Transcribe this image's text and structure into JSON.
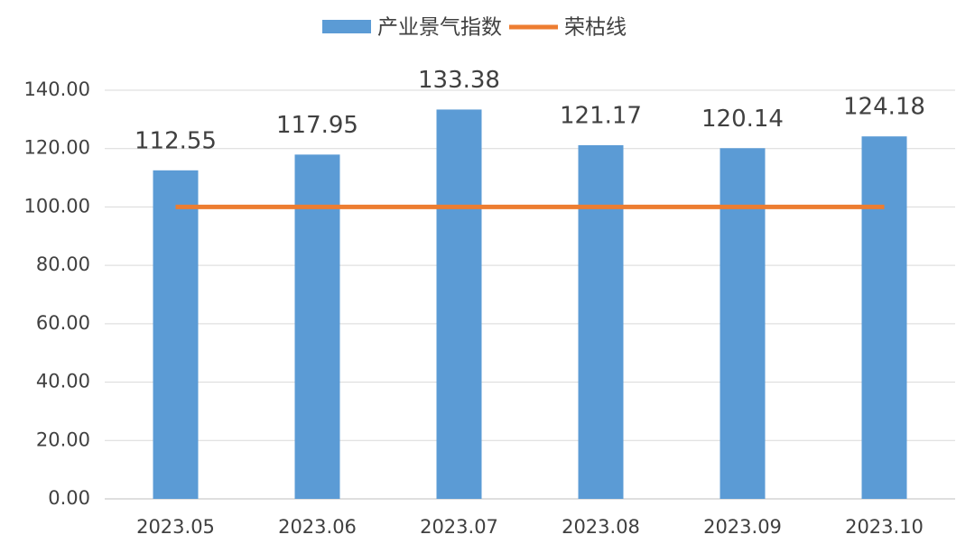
{
  "chart_data": {
    "type": "bar",
    "categories": [
      "2023.05",
      "2023.06",
      "2023.07",
      "2023.08",
      "2023.09",
      "2023.10"
    ],
    "series": [
      {
        "name": "产业景气指数",
        "color": "#5b9bd5",
        "type": "bar",
        "values": [
          112.55,
          117.95,
          133.38,
          121.17,
          120.14,
          124.18
        ]
      },
      {
        "name": "荣枯线",
        "color": "#ed7d31",
        "type": "line",
        "values": [
          100,
          100,
          100,
          100,
          100,
          100
        ]
      }
    ],
    "ylim": [
      0,
      140
    ],
    "yticks": [
      {
        "value": 0,
        "label": "0.00"
      },
      {
        "value": 20,
        "label": "20.00"
      },
      {
        "value": 40,
        "label": "40.00"
      },
      {
        "value": 60,
        "label": "60.00"
      },
      {
        "value": 80,
        "label": "80.00"
      },
      {
        "value": 100,
        "label": "100.00"
      },
      {
        "value": 120,
        "label": "120.00"
      },
      {
        "value": 140,
        "label": "140.00"
      }
    ],
    "grid": true,
    "legend": "top"
  }
}
